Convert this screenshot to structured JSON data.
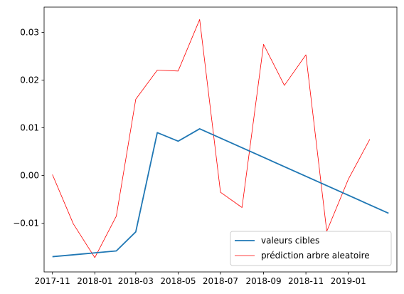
{
  "chart_data": {
    "type": "line",
    "title": "",
    "xlabel": "",
    "ylabel": "",
    "x_ticks": [
      "2017-11",
      "2018-01",
      "2018-03",
      "2018-05",
      "2018-07",
      "2018-09",
      "2018-11",
      "2019-01"
    ],
    "y_ticks": [
      "−0.01",
      "0.00",
      "0.01",
      "0.02",
      "0.03"
    ],
    "xlim": [
      "2017-10-20",
      "2019-03-12"
    ],
    "ylim": [
      -0.0202,
      0.0353
    ],
    "grid": false,
    "legend_position": "lower right",
    "series": [
      {
        "name": "valeurs cibles",
        "color": "#1f77b4",
        "points": [
          {
            "x": "2017-11-01",
            "y": -0.017
          },
          {
            "x": "2018-02-01",
            "y": -0.0158
          },
          {
            "x": "2018-03-01",
            "y": -0.0118
          },
          {
            "x": "2018-04-01",
            "y": 0.009
          },
          {
            "x": "2018-05-01",
            "y": 0.0072
          },
          {
            "x": "2018-06-01",
            "y": 0.0098
          },
          {
            "x": "2019-02-28",
            "y": -0.0079
          }
        ]
      },
      {
        "name": "prédiction arbre aleatoire",
        "color": "#ff0000",
        "points": [
          {
            "x": "2017-11-01",
            "y": 0.0002
          },
          {
            "x": "2017-12-01",
            "y": -0.0101
          },
          {
            "x": "2018-01-01",
            "y": -0.0172
          },
          {
            "x": "2018-02-01",
            "y": -0.0085
          },
          {
            "x": "2018-03-01",
            "y": 0.016
          },
          {
            "x": "2018-04-01",
            "y": 0.0221
          },
          {
            "x": "2018-05-01",
            "y": 0.0219
          },
          {
            "x": "2018-06-01",
            "y": 0.0327
          },
          {
            "x": "2018-07-01",
            "y": -0.0035
          },
          {
            "x": "2018-08-01",
            "y": -0.0067
          },
          {
            "x": "2018-09-01",
            "y": 0.0275
          },
          {
            "x": "2018-10-01",
            "y": 0.0189
          },
          {
            "x": "2018-11-01",
            "y": 0.0253
          },
          {
            "x": "2018-12-01",
            "y": -0.0117
          },
          {
            "x": "2019-01-01",
            "y": -0.0008
          },
          {
            "x": "2019-02-01",
            "y": 0.0076
          }
        ]
      }
    ]
  }
}
